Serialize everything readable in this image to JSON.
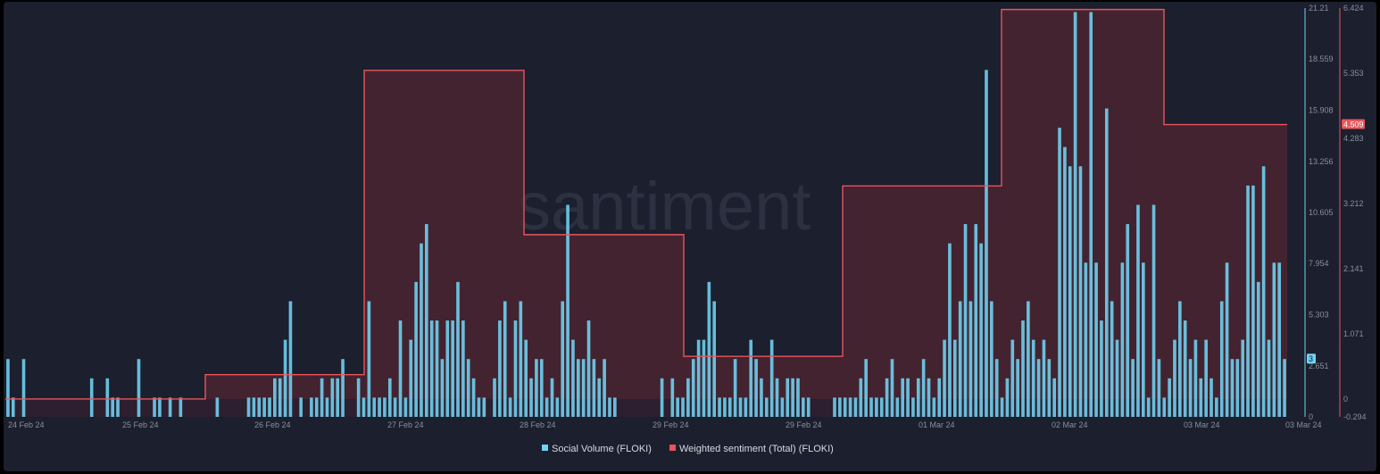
{
  "watermark": "santiment",
  "chart_data": {
    "type": "bar+line",
    "title": "",
    "xlabel": "",
    "ylabel": "",
    "x_tick_labels": [
      "24 Feb 24",
      "25 Feb 24",
      "26 Feb 24",
      "27 Feb 24",
      "28 Feb 24",
      "29 Feb 24",
      "29 Feb 24",
      "01 Mar 24",
      "02 Mar 24",
      "03 Mar 24",
      "03 Mar 24"
    ],
    "legend": {
      "position": "bottom-center",
      "entries": [
        {
          "label": "Social Volume (FLOKI)",
          "color": "#6fd4f2"
        },
        {
          "label": "Weighted sentiment (Total) (FLOKI)",
          "color": "#e8555b"
        }
      ]
    },
    "left_axis": {
      "series": "Social Volume (FLOKI)",
      "ylim": [
        0,
        21.21
      ],
      "tick_labels": [
        "0",
        "2.651",
        "5.303",
        "7.954",
        "10.605",
        "13.256",
        "15.908",
        "18.559",
        "21.21"
      ],
      "last_value_label": "3"
    },
    "right_axis": {
      "series": "Weighted sentiment (Total) (FLOKI)",
      "ylim": [
        -0.294,
        6.424
      ],
      "tick_labels": [
        "-0.294",
        "0",
        "1.071",
        "2.141",
        "3.212",
        "4.283",
        "5.353",
        "6.424"
      ],
      "last_value_label": "4.509"
    },
    "series": [
      {
        "name": "Social Volume (FLOKI)",
        "type": "bar",
        "color": "#6fd4f2",
        "values": [
          3,
          1,
          0,
          3,
          0,
          0,
          0,
          0,
          0,
          0,
          0,
          0,
          0,
          0,
          0,
          0,
          2,
          0,
          0,
          2,
          1,
          1,
          0,
          0,
          0,
          3,
          0,
          0,
          1,
          1,
          0,
          1,
          0,
          1,
          0,
          0,
          0,
          0,
          0,
          0,
          1,
          0,
          0,
          0,
          0,
          0,
          1,
          1,
          1,
          1,
          1,
          2,
          2,
          4,
          6,
          0,
          1,
          0,
          1,
          1,
          2,
          1,
          2,
          2,
          3,
          0,
          0,
          2,
          1,
          6,
          1,
          1,
          1,
          2,
          1,
          5,
          1,
          4,
          7,
          9,
          10,
          5,
          5,
          3,
          5,
          5,
          7,
          5,
          3,
          2,
          1,
          1,
          0,
          2,
          5,
          6,
          1,
          5,
          6,
          4,
          2,
          3,
          3,
          1,
          2,
          1,
          6,
          11,
          4,
          3,
          3,
          5,
          3,
          2,
          3,
          1,
          1,
          0,
          0,
          0,
          0,
          0,
          0,
          0,
          0,
          2,
          0,
          2,
          1,
          1,
          2,
          3,
          4,
          4,
          7,
          6,
          1,
          1,
          1,
          3,
          1,
          1,
          4,
          3,
          2,
          1,
          4,
          2,
          1,
          2,
          2,
          2,
          1,
          1,
          0,
          0,
          0,
          0,
          1,
          1,
          1,
          1,
          1,
          2,
          3,
          1,
          1,
          1,
          2,
          3,
          1,
          2,
          2,
          1,
          2,
          3,
          2,
          1,
          2,
          4,
          9,
          4,
          6,
          10,
          6,
          10,
          9,
          18,
          6,
          3,
          1,
          2,
          4,
          3,
          5,
          6,
          4,
          3,
          4,
          3,
          2,
          15,
          14,
          13,
          21,
          13,
          8,
          21,
          8,
          5,
          16,
          6,
          4,
          8,
          10,
          3,
          11,
          8,
          1,
          11,
          3,
          1,
          2,
          4,
          6,
          5,
          3,
          4,
          2,
          4,
          2,
          1,
          6,
          8,
          3,
          3,
          4,
          12,
          12,
          7,
          13,
          4,
          8,
          8,
          3
        ],
        "last_value": 3
      },
      {
        "name": "Weighted sentiment (Total) (FLOKI)",
        "type": "step-area",
        "color": "#e8555b",
        "points": [
          {
            "x": "24 Feb 24",
            "y": 0.0
          },
          {
            "x": "25 Feb 24 (late)",
            "y": 0.0
          },
          {
            "x": "25 Feb 24 (late)",
            "y": 0.4
          },
          {
            "x": "26 Feb 24 (late)",
            "y": 0.4
          },
          {
            "x": "26 Feb 24 (late)",
            "y": 5.4
          },
          {
            "x": "27 Feb 24 (late)",
            "y": 5.4
          },
          {
            "x": "27 Feb 24 (late)",
            "y": 2.7
          },
          {
            "x": "28 Feb 24 (late)",
            "y": 2.7
          },
          {
            "x": "28 Feb 24 (late)",
            "y": 0.7
          },
          {
            "x": "29 Feb 24 (late)",
            "y": 0.7
          },
          {
            "x": "29 Feb 24 (late)",
            "y": 3.5
          },
          {
            "x": "01 Mar 24 (late)",
            "y": 3.5
          },
          {
            "x": "01 Mar 24 (late)",
            "y": 6.4
          },
          {
            "x": "02 Mar 24 (late)",
            "y": 6.4
          },
          {
            "x": "02 Mar 24 (late)",
            "y": 4.509
          },
          {
            "x": "03 Mar 24",
            "y": 4.509
          }
        ],
        "last_value": 4.509
      }
    ],
    "grid": false
  }
}
